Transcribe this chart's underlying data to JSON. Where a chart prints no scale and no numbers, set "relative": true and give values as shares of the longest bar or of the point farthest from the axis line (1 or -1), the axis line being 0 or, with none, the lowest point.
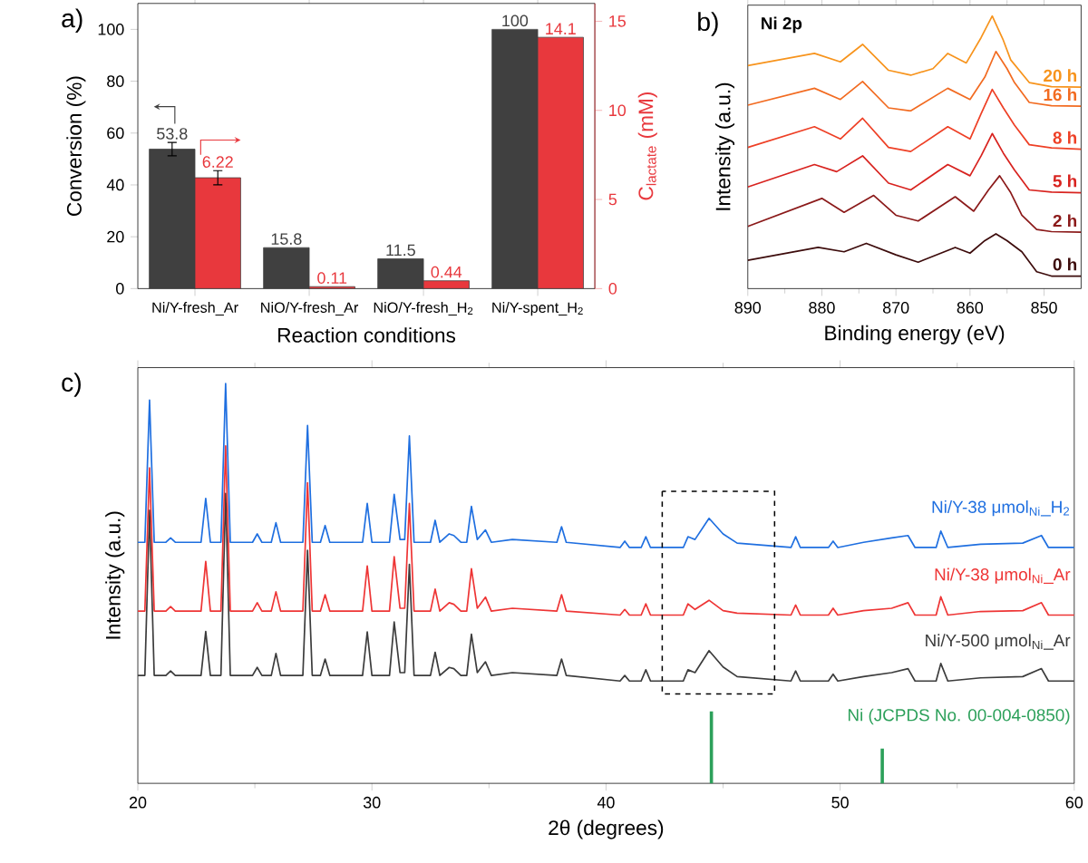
{
  "chart_data": [
    {
      "type": "bar",
      "categories": [
        "Ni/Y-fresh_Ar",
        "NiO/Y-fresh_Ar",
        "NiO/Y-fresh_H$_{2}$",
        "Ni/Y-spent_H$_{2}$"
      ],
      "xlabel": "Reaction conditions",
      "ylabel": "Conversion (%)",
      "y2label": "C$_{lactate}$ (mM)",
      "ylim": [
        0,
        110
      ],
      "yticks": [
        0,
        20,
        40,
        60,
        80,
        100
      ],
      "y2lim": [
        0,
        16
      ],
      "y2ticks": [
        0,
        5,
        10,
        15
      ],
      "data_labels": true,
      "annotations": [
        "a)"
      ],
      "series": [
        {
          "color": "#404040",
          "values": [
            53.8,
            15.8,
            11.5,
            100
          ],
          "errors": [
            2.6,
            null,
            null,
            null
          ]
        },
        {
          "color": "#e8383d",
          "axis": "y2",
          "values": [
            6.22,
            0.11,
            0.44,
            14.1
          ],
          "errors": [
            0.4,
            null,
            null,
            null
          ]
        }
      ]
    },
    {
      "type": "line",
      "relative": true,
      "title": "Ni 2p",
      "xlabel": "Binding energy (eV)",
      "ylabel": "Intensity (a.u.)",
      "xlim": [
        890,
        845
      ],
      "xticks": [
        890,
        {
          "value": 885,
          "label": null
        },
        880,
        {
          "value": 875,
          "label": null
        },
        870,
        {
          "value": 865,
          "label": null
        },
        860,
        {
          "value": 855,
          "label": null
        },
        850
      ],
      "tick_labels": "x",
      "annotations": [
        "b)"
      ],
      "series": [
        {
          "name": "0 h",
          "color": "#3d0c0c",
          "x": [
            890,
            880.5,
            877,
            874,
            870,
            867,
            862,
            860,
            858,
            856.5,
            855,
            853,
            851,
            849,
            845
          ],
          "values": [
            0.104,
            0.151,
            0.135,
            0.166,
            0.124,
            0.097,
            0.151,
            0.13,
            0.176,
            0.201,
            0.176,
            0.135,
            0.062,
            0.046,
            0.046
          ]
        },
        {
          "name": "2 h",
          "color": "#8b1a1a",
          "x": [
            890,
            880,
            877,
            873,
            870,
            867,
            862,
            859.5,
            857.5,
            856,
            854.5,
            853,
            851,
            849,
            845
          ],
          "values": [
            0.228,
            0.331,
            0.28,
            0.342,
            0.269,
            0.248,
            0.337,
            0.284,
            0.362,
            0.414,
            0.352,
            0.269,
            0.217,
            0.209,
            0.207
          ]
        },
        {
          "name": "5 h",
          "color": "#d8231f",
          "x": [
            890,
            881,
            878,
            874.5,
            871,
            868,
            863,
            860,
            858.5,
            857,
            855.5,
            854,
            852,
            849,
            845
          ],
          "values": [
            0.373,
            0.455,
            0.429,
            0.487,
            0.387,
            0.362,
            0.455,
            0.414,
            0.487,
            0.569,
            0.497,
            0.435,
            0.362,
            0.354,
            0.352
          ]
        },
        {
          "name": "8 h",
          "color": "#ee4026",
          "x": [
            890,
            881,
            877.5,
            874.5,
            871,
            868,
            863,
            860,
            858.5,
            857,
            855.5,
            854,
            852,
            849,
            845
          ],
          "values": [
            0.518,
            0.594,
            0.549,
            0.625,
            0.518,
            0.503,
            0.594,
            0.549,
            0.642,
            0.731,
            0.663,
            0.6,
            0.528,
            0.516,
            0.511
          ]
        },
        {
          "name": "16 h",
          "color": "#f26b21",
          "x": [
            890,
            881,
            877.5,
            874.5,
            871,
            868,
            863,
            860,
            858,
            856.5,
            855,
            854,
            852,
            849,
            845
          ],
          "values": [
            0.673,
            0.735,
            0.694,
            0.76,
            0.663,
            0.652,
            0.735,
            0.694,
            0.776,
            0.87,
            0.807,
            0.756,
            0.683,
            0.671,
            0.669
          ]
        },
        {
          "name": "20 h",
          "color": "#f7941d",
          "x": [
            890,
            881,
            877.5,
            874.5,
            871,
            868,
            865,
            863,
            860.5,
            858.5,
            857,
            855.5,
            854.5,
            852,
            849,
            845
          ],
          "values": [
            0.818,
            0.863,
            0.832,
            0.896,
            0.801,
            0.783,
            0.807,
            0.863,
            0.828,
            0.921,
            1.0,
            0.911,
            0.839,
            0.756,
            0.741,
            0.739
          ]
        }
      ]
    },
    {
      "type": "line",
      "relative": true,
      "xlabel": "2θ (degrees)",
      "ylabel": "Intensity (a.u.)",
      "xlim": [
        20,
        60
      ],
      "xticks": [
        20,
        {
          "value": 25,
          "label": null
        },
        30,
        {
          "value": 35,
          "label": null
        },
        40,
        {
          "value": 45,
          "label": null
        },
        50,
        {
          "value": 55,
          "label": null
        },
        60
      ],
      "tick_labels": "x",
      "annotations": [
        "c)"
      ],
      "x": [
        20,
        20.3,
        20.5,
        20.7,
        21.2,
        21.4,
        21.6,
        22.7,
        22.9,
        23.1,
        23.55,
        23.75,
        23.95,
        24.9,
        25.1,
        25.3,
        25.7,
        25.9,
        26.1,
        27.05,
        27.25,
        27.45,
        27.8,
        28.0,
        28.2,
        29.6,
        29.8,
        30.0,
        30.75,
        30.95,
        31.2,
        31.4,
        31.6,
        31.8,
        32.5,
        32.7,
        32.9,
        33.3,
        33.5,
        33.8,
        34.05,
        34.25,
        34.5,
        34.85,
        35.1,
        36.0,
        37.9,
        38.1,
        38.3,
        40.6,
        40.8,
        41.0,
        41.5,
        41.7,
        41.9,
        42.2,
        43.3,
        43.5,
        43.8,
        44.4,
        45.0,
        45.6,
        47.9,
        48.1,
        48.3,
        49.5,
        49.7,
        49.9,
        51.0,
        52.2,
        52.9,
        53.2,
        54.1,
        54.3,
        54.6,
        56.0,
        57.8,
        58.6,
        58.9,
        60
      ],
      "series": [
        {
          "name": "Ni/Y-500 μmol$_{Ni}$_Ar",
          "color": "#3c3c3c",
          "values": [
            0.27,
            0.27,
            0.683,
            0.27,
            0.27,
            0.281,
            0.27,
            0.27,
            0.38,
            0.27,
            0.27,
            0.725,
            0.27,
            0.27,
            0.29,
            0.27,
            0.27,
            0.325,
            0.27,
            0.27,
            0.583,
            0.27,
            0.27,
            0.311,
            0.27,
            0.27,
            0.379,
            0.27,
            0.27,
            0.404,
            0.277,
            0.277,
            0.548,
            0.27,
            0.27,
            0.328,
            0.27,
            0.29,
            0.287,
            0.27,
            0.27,
            0.373,
            0.277,
            0.304,
            0.27,
            0.277,
            0.27,
            0.311,
            0.27,
            0.256,
            0.27,
            0.256,
            0.256,
            0.284,
            0.256,
            0.256,
            0.256,
            0.284,
            0.277,
            0.332,
            0.291,
            0.267,
            0.256,
            0.281,
            0.256,
            0.256,
            0.273,
            0.256,
            0.267,
            0.277,
            0.287,
            0.256,
            0.256,
            0.3,
            0.256,
            0.264,
            0.267,
            0.287,
            0.256,
            0.256
          ]
        },
        {
          "name": "Ni/Y-38 μmol$_{Ni}$_Ar",
          "color": "#ee3535",
          "values": [
            0.431,
            0.431,
            0.789,
            0.431,
            0.431,
            0.442,
            0.431,
            0.431,
            0.555,
            0.431,
            0.431,
            0.844,
            0.431,
            0.431,
            0.452,
            0.431,
            0.431,
            0.479,
            0.431,
            0.431,
            0.752,
            0.431,
            0.431,
            0.472,
            0.431,
            0.431,
            0.544,
            0.431,
            0.431,
            0.567,
            0.438,
            0.438,
            0.7,
            0.431,
            0.431,
            0.486,
            0.431,
            0.452,
            0.448,
            0.431,
            0.431,
            0.537,
            0.438,
            0.466,
            0.431,
            0.438,
            0.431,
            0.472,
            0.431,
            0.421,
            0.435,
            0.421,
            0.421,
            0.449,
            0.421,
            0.421,
            0.421,
            0.449,
            0.435,
            0.458,
            0.432,
            0.426,
            0.421,
            0.446,
            0.421,
            0.421,
            0.438,
            0.421,
            0.432,
            0.438,
            0.452,
            0.421,
            0.421,
            0.467,
            0.421,
            0.43,
            0.432,
            0.452,
            0.421,
            0.421
          ]
        },
        {
          "name": "Ni/Y-38 μmol$_{Ni}$_H$_{2}$",
          "color": "#1f6fe0",
          "values": [
            0.603,
            0.603,
            0.959,
            0.603,
            0.603,
            0.614,
            0.603,
            0.603,
            0.713,
            0.603,
            0.603,
            1.0,
            0.603,
            0.603,
            0.624,
            0.603,
            0.603,
            0.652,
            0.603,
            0.603,
            0.895,
            0.603,
            0.603,
            0.645,
            0.603,
            0.603,
            0.7,
            0.603,
            0.603,
            0.723,
            0.61,
            0.61,
            0.869,
            0.603,
            0.603,
            0.658,
            0.603,
            0.624,
            0.62,
            0.603,
            0.603,
            0.693,
            0.61,
            0.634,
            0.603,
            0.61,
            0.603,
            0.642,
            0.603,
            0.59,
            0.606,
            0.59,
            0.59,
            0.617,
            0.59,
            0.59,
            0.59,
            0.617,
            0.61,
            0.663,
            0.624,
            0.601,
            0.59,
            0.617,
            0.59,
            0.59,
            0.606,
            0.59,
            0.603,
            0.614,
            0.62,
            0.59,
            0.59,
            0.631,
            0.59,
            0.598,
            0.601,
            0.62,
            0.59,
            0.59
          ]
        },
        {
          "name": "Ni (JCPDS No. 00-004-0850)",
          "type": "bar",
          "color": "#2ca05a",
          "x": [
            44.5,
            51.8
          ],
          "values": [
            0.18,
            0.087
          ]
        }
      ]
    }
  ]
}
